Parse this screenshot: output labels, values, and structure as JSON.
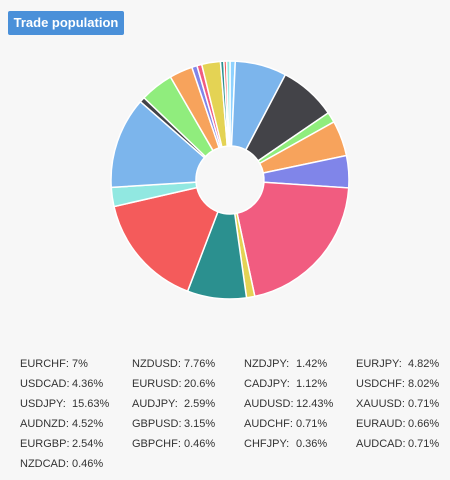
{
  "header": {
    "title": "Trade population"
  },
  "chart_data": {
    "type": "pie",
    "donut": true,
    "title": "Trade population",
    "start_angle_deg": 0,
    "direction": "clockwise",
    "slices": [
      {
        "label": "AUDCAD",
        "value": 0.71,
        "color": "#8fd2ff"
      },
      {
        "label": "EURCHF",
        "value": 7,
        "color": "#7cb5ec"
      },
      {
        "label": "NZDUSD",
        "value": 7.76,
        "color": "#434348"
      },
      {
        "label": "NZDJPY",
        "value": 1.42,
        "color": "#90ed7d"
      },
      {
        "label": "EURJPY",
        "value": 4.82,
        "color": "#f7a35c"
      },
      {
        "label": "USDCAD",
        "value": 4.36,
        "color": "#8085e9"
      },
      {
        "label": "EURUSD",
        "value": 20.6,
        "color": "#f15c80"
      },
      {
        "label": "CADJPY",
        "value": 1.12,
        "color": "#e4d354"
      },
      {
        "label": "USDCHF",
        "value": 8.02,
        "color": "#2b908f"
      },
      {
        "label": "USDJPY",
        "value": 15.63,
        "color": "#f45b5b"
      },
      {
        "label": "AUDJPY",
        "value": 2.59,
        "color": "#91e8e1"
      },
      {
        "label": "AUDUSD",
        "value": 12.43,
        "color": "#7cb5ec"
      },
      {
        "label": "XAUUSD",
        "value": 0.71,
        "color": "#434348"
      },
      {
        "label": "AUDNZD",
        "value": 4.52,
        "color": "#90ed7d"
      },
      {
        "label": "GBPUSD",
        "value": 3.15,
        "color": "#f7a35c"
      },
      {
        "label": "AUDCHF",
        "value": 0.71,
        "color": "#8085e9"
      },
      {
        "label": "EURAUD",
        "value": 0.66,
        "color": "#f15c80"
      },
      {
        "label": "EURGBP",
        "value": 2.54,
        "color": "#e4d354"
      },
      {
        "label": "GBPCHF",
        "value": 0.46,
        "color": "#2b908f"
      },
      {
        "label": "CHFJPY",
        "value": 0.36,
        "color": "#f45b5b"
      },
      {
        "label": "NZDCAD",
        "value": 0.46,
        "color": "#91e8e1"
      }
    ]
  },
  "legend": [
    {
      "name": "EURCHF:",
      "value": "7%"
    },
    {
      "name": "NZDUSD:",
      "value": "7.76%"
    },
    {
      "name": "NZDJPY:",
      "value": "1.42%"
    },
    {
      "name": "EURJPY:",
      "value": "4.82%"
    },
    {
      "name": "USDCAD:",
      "value": "4.36%"
    },
    {
      "name": "EURUSD:",
      "value": "20.6%"
    },
    {
      "name": "CADJPY:",
      "value": "1.12%"
    },
    {
      "name": "USDCHF:",
      "value": "8.02%"
    },
    {
      "name": "USDJPY:",
      "value": "15.63%"
    },
    {
      "name": "AUDJPY:",
      "value": "2.59%"
    },
    {
      "name": "AUDUSD:",
      "value": "12.43%"
    },
    {
      "name": "XAUUSD:",
      "value": "0.71%"
    },
    {
      "name": "AUDNZD:",
      "value": "4.52%"
    },
    {
      "name": "GBPUSD:",
      "value": "3.15%"
    },
    {
      "name": "AUDCHF:",
      "value": "0.71%"
    },
    {
      "name": "EURAUD:",
      "value": "0.66%"
    },
    {
      "name": "EURGBP:",
      "value": "2.54%"
    },
    {
      "name": "GBPCHF:",
      "value": "0.46%"
    },
    {
      "name": "CHFJPY:",
      "value": "0.36%"
    },
    {
      "name": "AUDCAD:",
      "value": "0.71%"
    },
    {
      "name": "NZDCAD:",
      "value": "0.46%"
    }
  ]
}
